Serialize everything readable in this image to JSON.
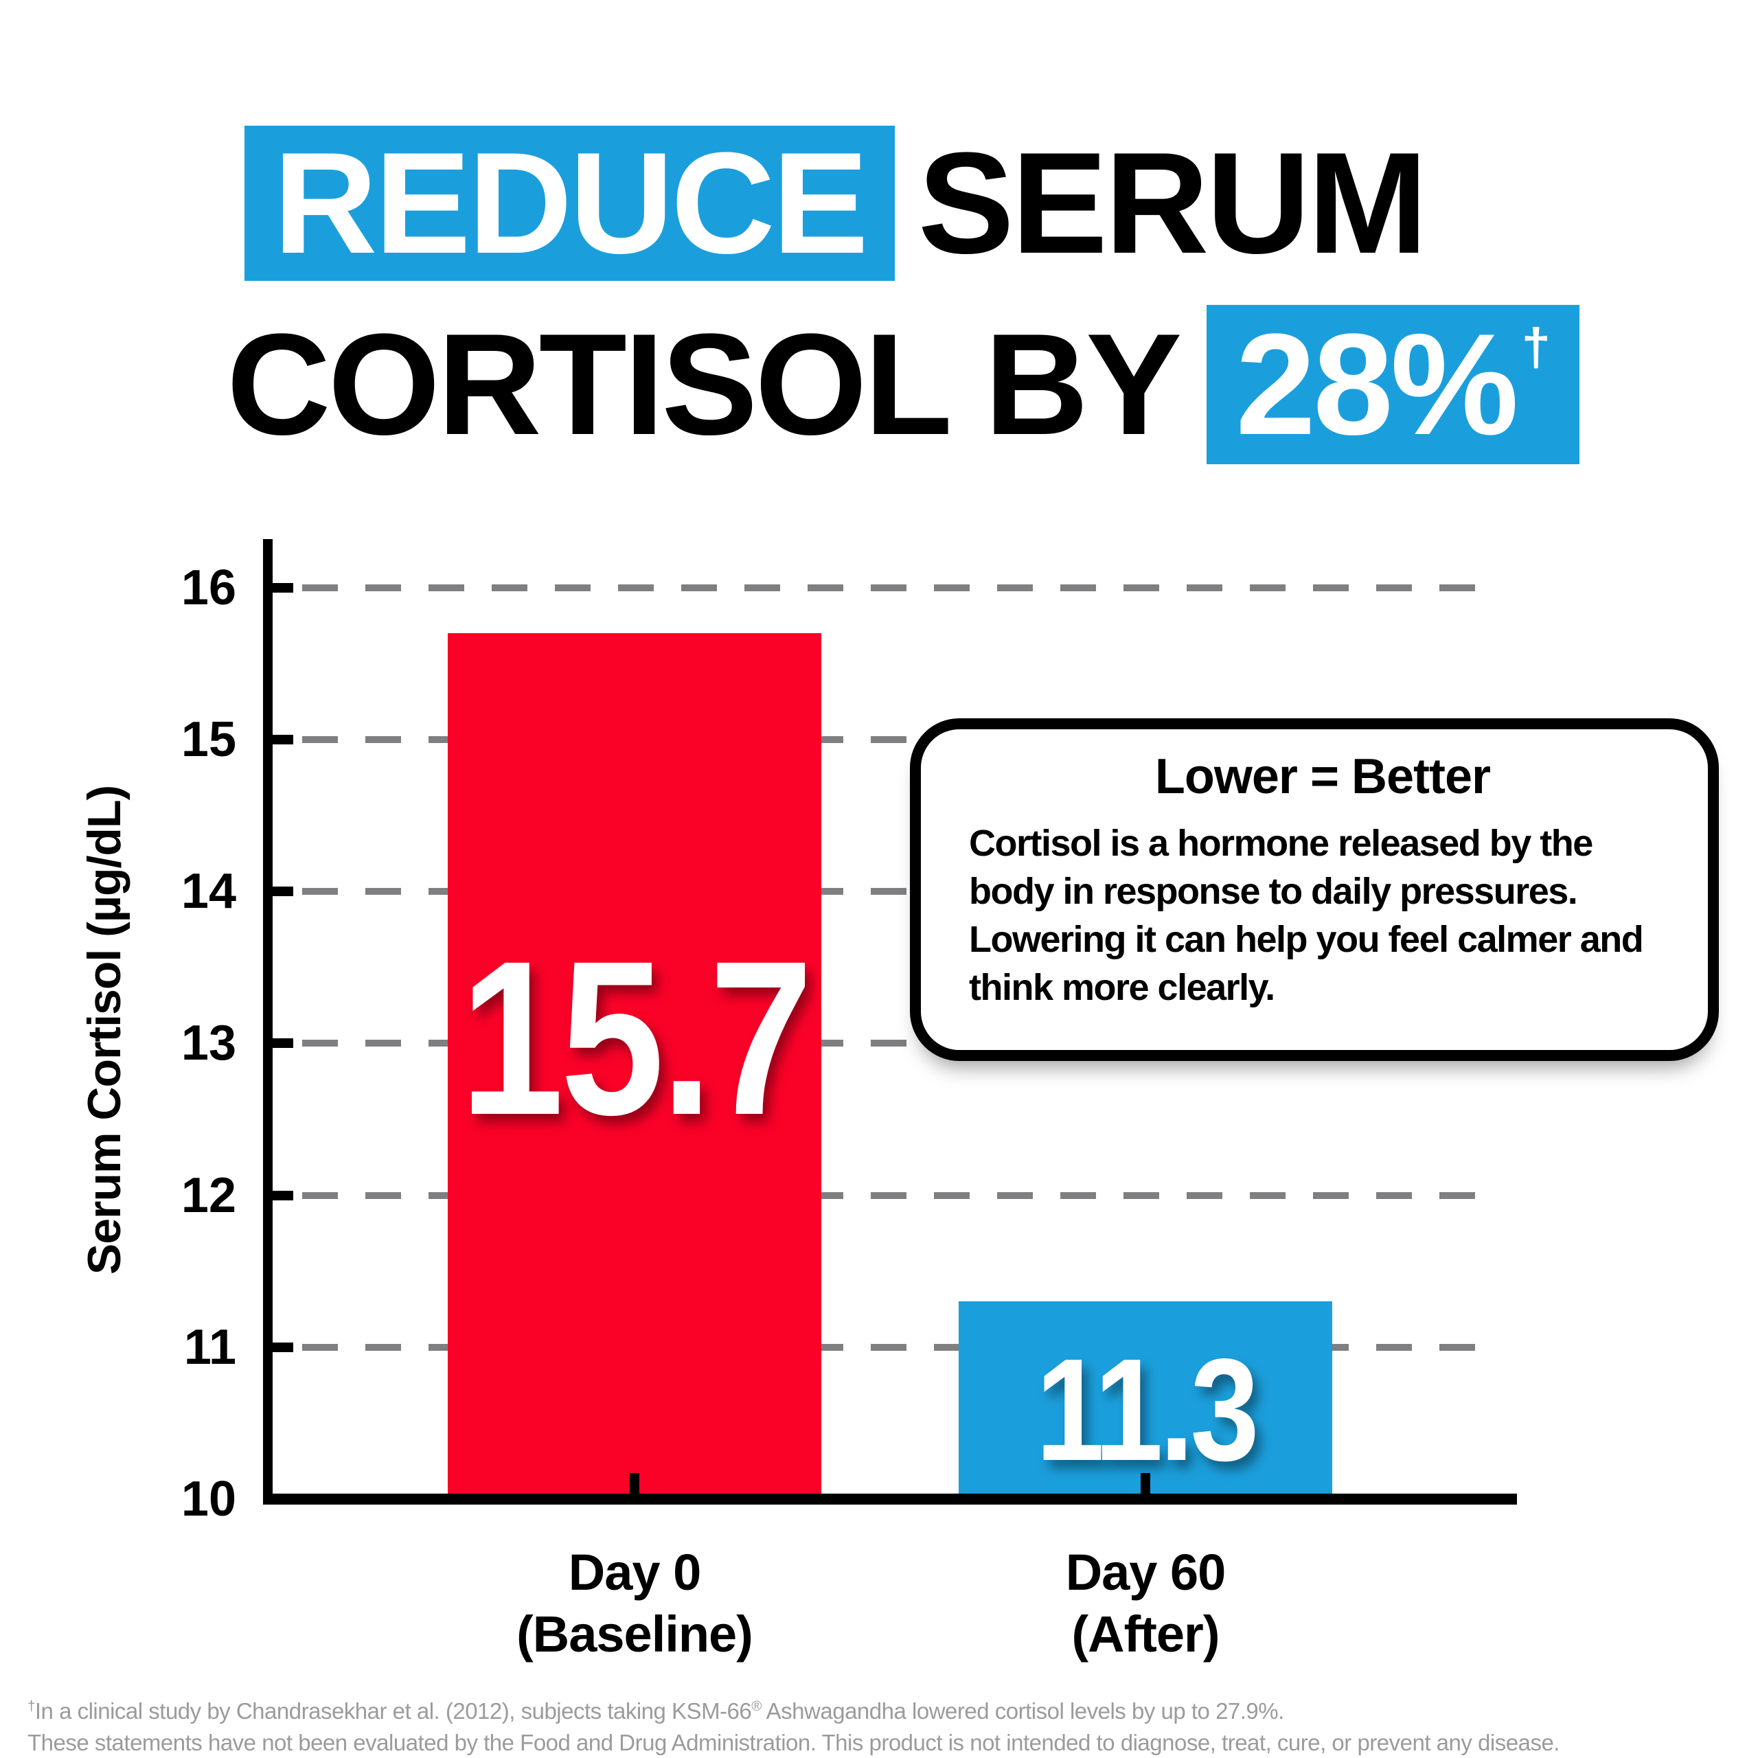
{
  "headline": {
    "line1_highlight": "REDUCE",
    "line1_rest": "SERUM",
    "line2_prefix": "CORTISOL BY",
    "line2_highlight": "28%",
    "line2_dagger": "†"
  },
  "callout": {
    "title": "Lower = Better",
    "body": "Cortisol is a hormone released by the body in response to daily pressures. Lowering it can help you feel calmer and think more clearly."
  },
  "footnote": {
    "dagger": "†",
    "line1_before_reg": "In a clinical study by Chandrasekhar et al. (2012), subjects taking KSM-66",
    "reg_mark": "®",
    "line1_after_reg": " Ashwagandha lowered cortisol levels by up to 27.9%.",
    "line2": "These statements have not been evaluated by the Food and Drug Administration. This product is not intended to diagnose, treat, cure, or prevent any disease."
  },
  "colors": {
    "accent_blue": "#1B9FDC",
    "bar_red": "#FA0228",
    "gridline_gray": "#7F7F82",
    "footnote_gray": "#9B9B9D",
    "ink": "#000000"
  },
  "chart_data": {
    "type": "bar",
    "title": "Reduce serum cortisol by 28%",
    "ylabel": "Serum Cortisol (µg/dL)",
    "xlabel": "",
    "ylim": [
      10,
      16.3
    ],
    "yticks": [
      10,
      11,
      12,
      13,
      14,
      15,
      16
    ],
    "grid": "dashed horizontal gridlines at 11-16",
    "legend": "none",
    "categories": [
      "Day 0 (Baseline)",
      "Day 60 (After)"
    ],
    "bars": [
      {
        "label": "Day 0",
        "sublabel": "(Baseline)",
        "value": 15.7,
        "value_label": "15.7",
        "color": "#FA0228"
      },
      {
        "label": "Day 60",
        "sublabel": "(After)",
        "value": 11.3,
        "value_label": "11.3",
        "color": "#1B9FDC"
      }
    ]
  }
}
